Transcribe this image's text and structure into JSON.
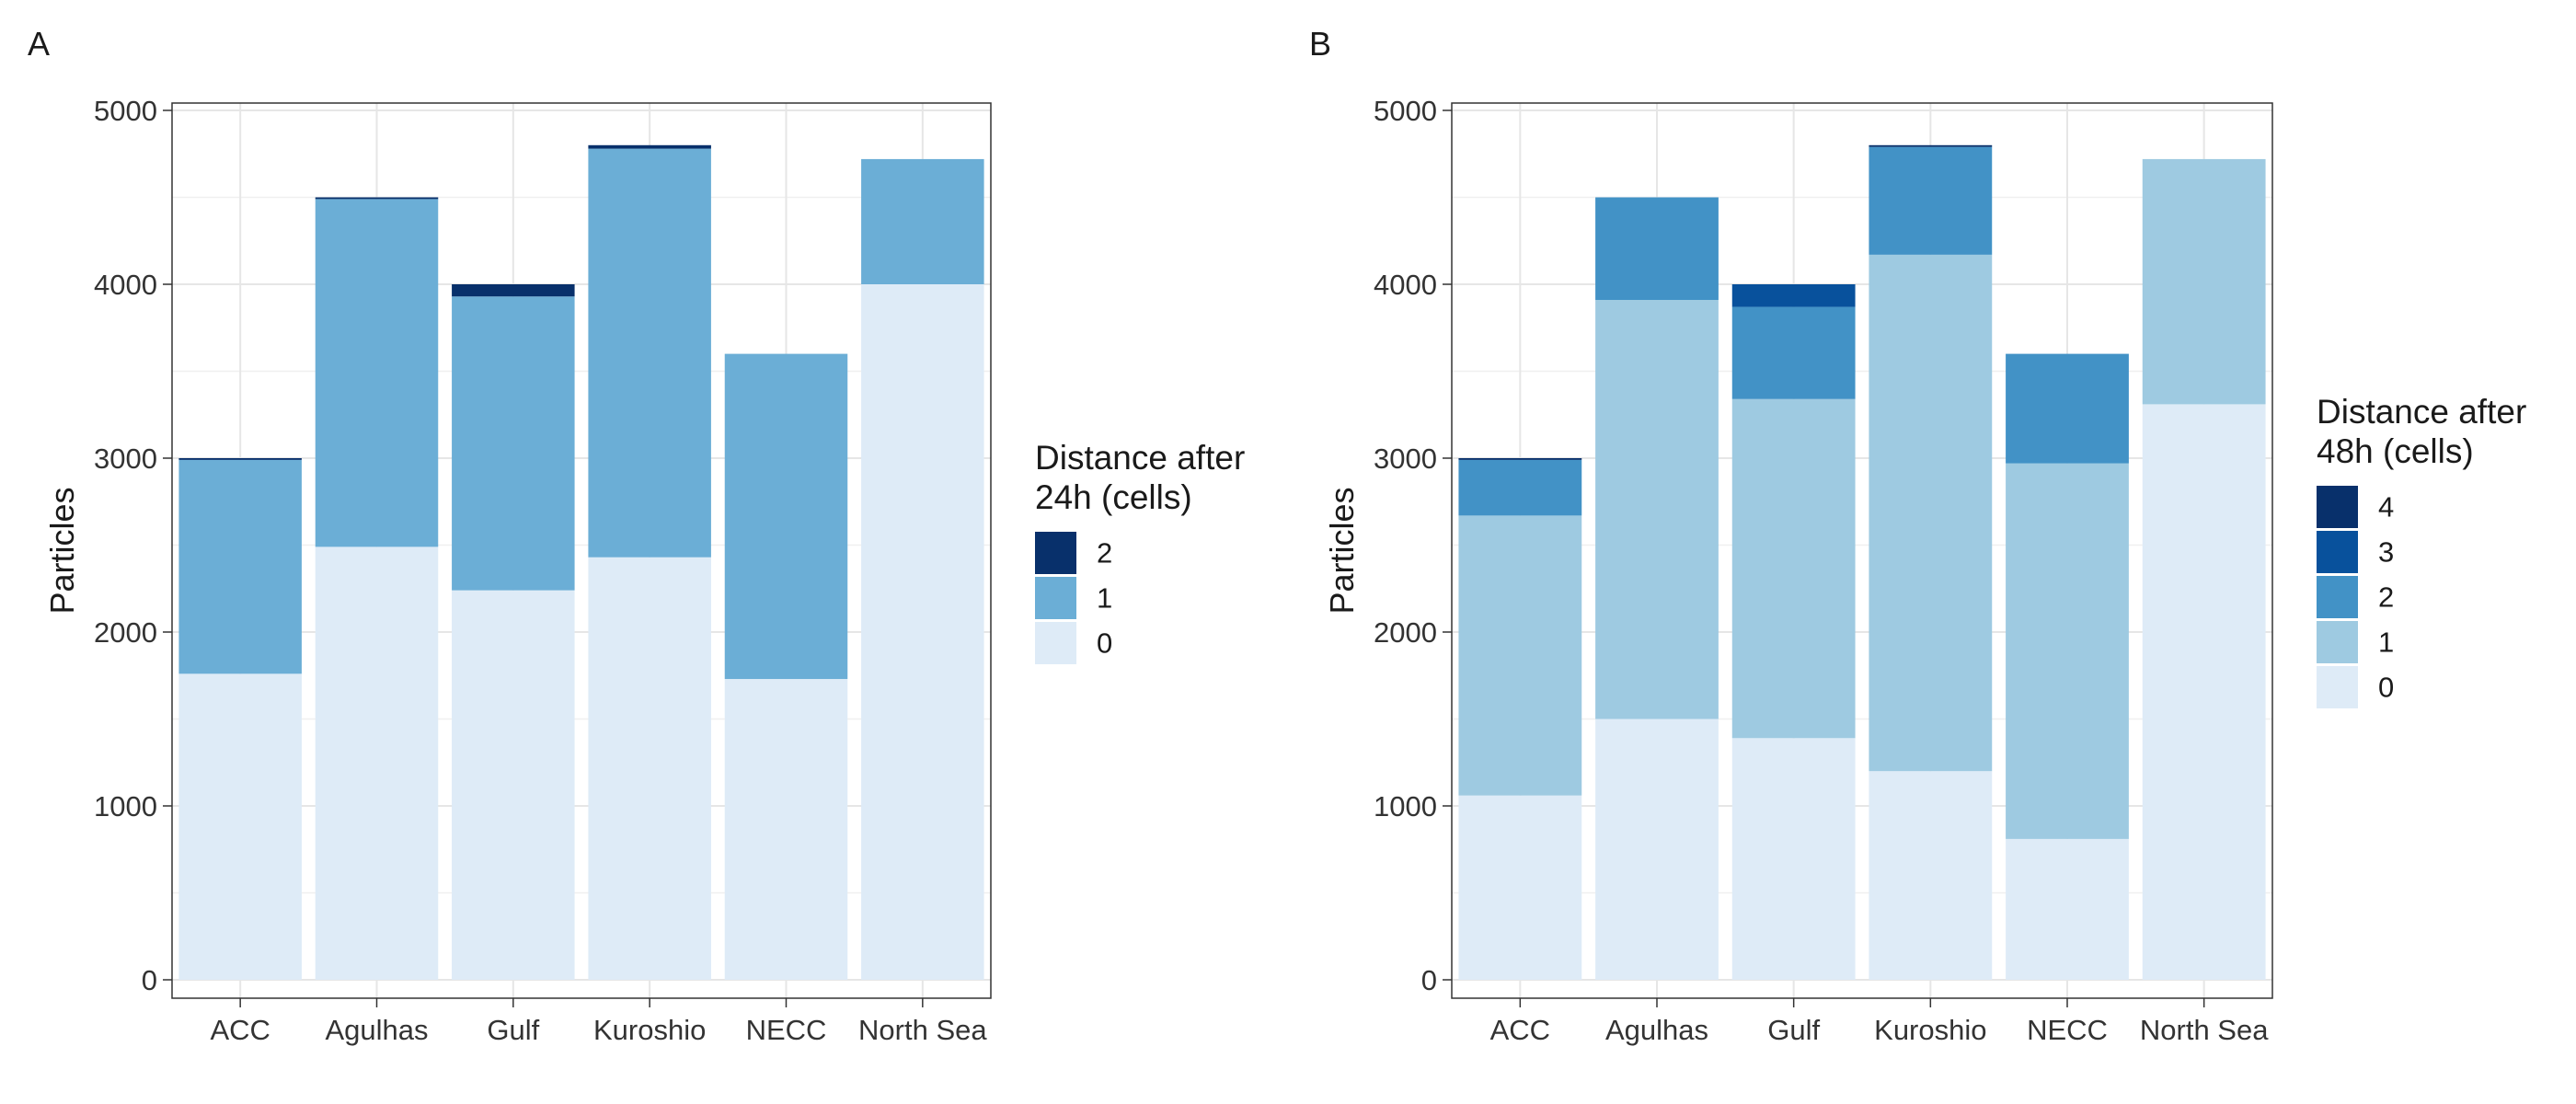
{
  "chart_data": [
    {
      "panel_tag": "A",
      "type": "bar",
      "stacked": true,
      "categories": [
        "ACC",
        "Agulhas",
        "Gulf",
        "Kuroshio",
        "NECC",
        "North Sea"
      ],
      "ylabel": "Particles",
      "xlabel": "",
      "ylim": [
        0,
        5000
      ],
      "yticks": [
        "0",
        "1000",
        "2000",
        "3000",
        "4000",
        "5000"
      ],
      "grid": true,
      "legend": {
        "title_lines": [
          "Distance after",
          "24h (cells)"
        ],
        "placement": "right",
        "entries": [
          "2",
          "1",
          "0"
        ]
      },
      "series": [
        {
          "name": "0",
          "color": "#deebf7",
          "values": [
            1760,
            2490,
            2240,
            2430,
            1730,
            4000
          ]
        },
        {
          "name": "1",
          "color": "#6baed6",
          "values": [
            1230,
            2000,
            1690,
            2350,
            1870,
            720
          ]
        },
        {
          "name": "2",
          "color": "#08306b",
          "values": [
            10,
            10,
            70,
            20,
            0,
            0
          ]
        }
      ]
    },
    {
      "panel_tag": "B",
      "type": "bar",
      "stacked": true,
      "categories": [
        "ACC",
        "Agulhas",
        "Gulf",
        "Kuroshio",
        "NECC",
        "North Sea"
      ],
      "ylabel": "Particles",
      "xlabel": "",
      "ylim": [
        0,
        5000
      ],
      "yticks": [
        "0",
        "1000",
        "2000",
        "3000",
        "4000",
        "5000"
      ],
      "grid": true,
      "legend": {
        "title_lines": [
          "Distance after",
          "48h (cells)"
        ],
        "placement": "right",
        "entries": [
          "4",
          "3",
          "2",
          "1",
          "0"
        ]
      },
      "series": [
        {
          "name": "0",
          "color": "#deebf7",
          "values": [
            1060,
            1500,
            1390,
            1200,
            810,
            3310
          ]
        },
        {
          "name": "1",
          "color": "#9ecae1",
          "values": [
            1610,
            2410,
            1950,
            2970,
            2160,
            1410
          ]
        },
        {
          "name": "2",
          "color": "#4292c6",
          "values": [
            320,
            590,
            530,
            620,
            630,
            0
          ]
        },
        {
          "name": "3",
          "color": "#08519c",
          "values": [
            0,
            0,
            130,
            0,
            0,
            0
          ]
        },
        {
          "name": "4",
          "color": "#08306b",
          "values": [
            10,
            0,
            0,
            10,
            0,
            0
          ]
        }
      ]
    }
  ]
}
